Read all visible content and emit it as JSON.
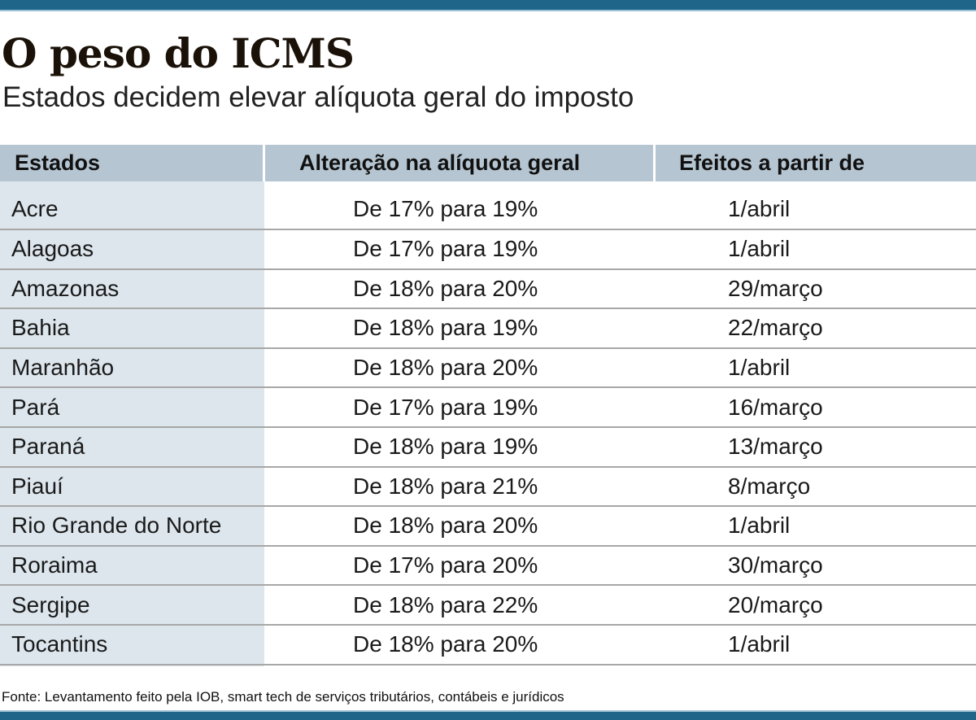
{
  "title": "O peso do ICMS",
  "subtitle": "Estados decidem elevar alíquota geral do imposto",
  "colors": {
    "bar": "#1f6489",
    "header_bg": "#b5c5d1",
    "first_col_bg": "#dde6ed"
  },
  "table": {
    "headers": [
      "Estados",
      "Alteração na alíquota geral",
      "Efeitos a partir de"
    ],
    "rows": [
      [
        "Acre",
        "De 17% para 19%",
        "1/abril"
      ],
      [
        "Alagoas",
        "De 17% para 19%",
        "1/abril"
      ],
      [
        "Amazonas",
        "De 18% para 20%",
        "29/março"
      ],
      [
        "Bahia",
        "De 18% para 19%",
        "22/março"
      ],
      [
        "Maranhão",
        "De 18% para 20%",
        "1/abril"
      ],
      [
        "Pará",
        "De 17% para 19%",
        "16/março"
      ],
      [
        "Paraná",
        "De 18% para 19%",
        "13/março"
      ],
      [
        "Piauí",
        "De 18% para 21%",
        "8/março"
      ],
      [
        "Rio Grande do Norte",
        "De 18% para 20%",
        "1/abril"
      ],
      [
        "Roraima",
        "De 17% para 20%",
        "30/março"
      ],
      [
        "Sergipe",
        "De 18% para 22%",
        "20/março"
      ],
      [
        "Tocantins",
        "De 18% para 20%",
        "1/abril"
      ]
    ]
  },
  "footer": "Fonte: Levantamento feito pela IOB, smart tech de serviços tributários, contábeis e jurídicos"
}
